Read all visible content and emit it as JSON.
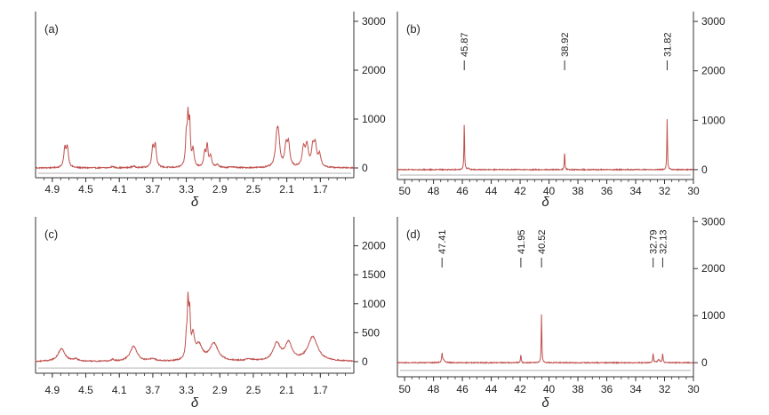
{
  "chart_data": [
    {
      "panel": "(a)",
      "type": "line",
      "x_label": "δ",
      "x_range": [
        5.1,
        1.3
      ],
      "x_ticks": [
        4.9,
        4.5,
        4.1,
        3.7,
        3.3,
        2.9,
        2.5,
        2.1,
        1.7
      ],
      "y_range": [
        -200,
        3200
      ],
      "y_ticks": [
        0,
        1000,
        2000,
        3000
      ],
      "y_axis_side": "right",
      "baseline_noise": 12,
      "peaks": [
        {
          "x": 4.75,
          "h": 380,
          "w": 0.015
        },
        {
          "x": 4.72,
          "h": 400,
          "w": 0.015
        },
        {
          "x": 4.18,
          "h": 30,
          "w": 0.02
        },
        {
          "x": 3.93,
          "h": 30,
          "w": 0.03
        },
        {
          "x": 3.7,
          "h": 400,
          "w": 0.015
        },
        {
          "x": 3.67,
          "h": 440,
          "w": 0.015
        },
        {
          "x": 3.3,
          "h": 600,
          "w": 0.012
        },
        {
          "x": 3.28,
          "h": 900,
          "w": 0.01
        },
        {
          "x": 3.26,
          "h": 820,
          "w": 0.01
        },
        {
          "x": 3.22,
          "h": 350,
          "w": 0.015
        },
        {
          "x": 3.08,
          "h": 300,
          "w": 0.015
        },
        {
          "x": 3.05,
          "h": 420,
          "w": 0.012
        },
        {
          "x": 3.01,
          "h": 230,
          "w": 0.015
        },
        {
          "x": 2.93,
          "h": 60,
          "w": 0.02
        },
        {
          "x": 2.75,
          "h": 20,
          "w": 0.03
        },
        {
          "x": 2.22,
          "h": 500,
          "w": 0.02
        },
        {
          "x": 2.2,
          "h": 520,
          "w": 0.02
        },
        {
          "x": 2.11,
          "h": 400,
          "w": 0.018
        },
        {
          "x": 2.08,
          "h": 450,
          "w": 0.018
        },
        {
          "x": 1.9,
          "h": 380,
          "w": 0.02
        },
        {
          "x": 1.86,
          "h": 420,
          "w": 0.02
        },
        {
          "x": 1.79,
          "h": 380,
          "w": 0.018
        },
        {
          "x": 1.76,
          "h": 420,
          "w": 0.018
        },
        {
          "x": 1.71,
          "h": 250,
          "w": 0.02
        }
      ],
      "peak_labels": []
    },
    {
      "panel": "(b)",
      "type": "line",
      "x_label": "δ",
      "x_range": [
        50.5,
        30.0
      ],
      "x_ticks": [
        50,
        48,
        46,
        44,
        42,
        40,
        38,
        36,
        34,
        32,
        30
      ],
      "y_range": [
        -200,
        3200
      ],
      "y_ticks": [
        0,
        1000,
        2000,
        3000
      ],
      "y_axis_side": "right",
      "baseline_noise": 10,
      "peaks": [
        {
          "x": 45.87,
          "h": 950,
          "w": 0.025
        },
        {
          "x": 45.6,
          "h": 30,
          "w": 0.05
        },
        {
          "x": 38.92,
          "h": 360,
          "w": 0.025
        },
        {
          "x": 31.82,
          "h": 1020,
          "w": 0.025
        }
      ],
      "peak_labels": [
        "45.87",
        "38.92",
        "31.82"
      ]
    },
    {
      "panel": "(c)",
      "type": "line",
      "x_label": "δ",
      "x_range": [
        5.1,
        1.3
      ],
      "x_ticks": [
        4.9,
        4.5,
        4.1,
        3.7,
        3.3,
        2.9,
        2.5,
        2.1,
        1.7
      ],
      "y_range": [
        -200,
        2500
      ],
      "y_ticks": [
        0,
        500,
        1000,
        1500,
        2000
      ],
      "y_axis_side": "right",
      "baseline_noise": 10,
      "peaks": [
        {
          "x": 4.79,
          "h": 220,
          "w": 0.05
        },
        {
          "x": 4.62,
          "h": 40,
          "w": 0.03
        },
        {
          "x": 4.18,
          "h": 30,
          "w": 0.02
        },
        {
          "x": 3.93,
          "h": 260,
          "w": 0.05
        },
        {
          "x": 3.7,
          "h": 40,
          "w": 0.04
        },
        {
          "x": 3.3,
          "h": 300,
          "w": 0.012
        },
        {
          "x": 3.28,
          "h": 900,
          "w": 0.01
        },
        {
          "x": 3.26,
          "h": 700,
          "w": 0.01
        },
        {
          "x": 3.22,
          "h": 380,
          "w": 0.02
        },
        {
          "x": 3.15,
          "h": 260,
          "w": 0.05
        },
        {
          "x": 2.97,
          "h": 300,
          "w": 0.06
        },
        {
          "x": 2.55,
          "h": 30,
          "w": 0.05
        },
        {
          "x": 2.22,
          "h": 300,
          "w": 0.05
        },
        {
          "x": 2.08,
          "h": 300,
          "w": 0.05
        },
        {
          "x": 1.79,
          "h": 420,
          "w": 0.07
        }
      ],
      "peak_labels": []
    },
    {
      "panel": "(d)",
      "type": "line",
      "x_label": "δ",
      "x_range": [
        50.5,
        30.0
      ],
      "x_ticks": [
        50,
        48,
        46,
        44,
        42,
        40,
        38,
        36,
        34,
        32,
        30
      ],
      "y_range": [
        -300,
        3100
      ],
      "y_ticks": [
        0,
        1000,
        2000,
        3000
      ],
      "y_axis_side": "right",
      "baseline_noise": 10,
      "peaks": [
        {
          "x": 47.41,
          "h": 190,
          "w": 0.03
        },
        {
          "x": 47.3,
          "h": 60,
          "w": 0.1
        },
        {
          "x": 41.95,
          "h": 170,
          "w": 0.03
        },
        {
          "x": 40.52,
          "h": 1050,
          "w": 0.025
        },
        {
          "x": 32.79,
          "h": 200,
          "w": 0.03
        },
        {
          "x": 32.13,
          "h": 190,
          "w": 0.03
        },
        {
          "x": 32.4,
          "h": 60,
          "w": 0.1
        }
      ],
      "peak_labels": [
        "47.41",
        "41.95",
        "40.52",
        "32.79",
        "32.13"
      ]
    }
  ],
  "colors": {
    "spectrum": "#c0504d",
    "axis": "#333333",
    "baseline_guide": "#b0b0b0"
  }
}
